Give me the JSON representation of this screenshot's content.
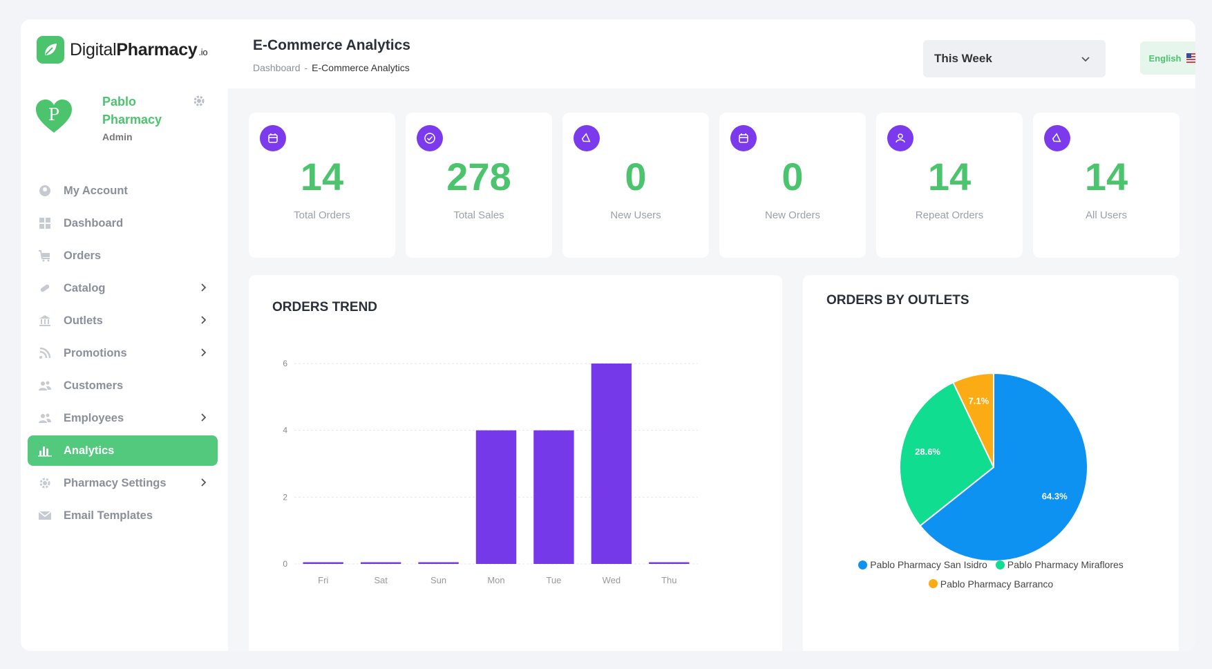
{
  "brand": {
    "name_light": "Digital",
    "name_bold": "Pharmacy",
    "suffix": ".io"
  },
  "profile": {
    "initial": "P",
    "name": "Pablo Pharmacy",
    "role": "Admin"
  },
  "nav": [
    {
      "label": "My Account",
      "icon": "user-circle-icon",
      "chevron": false,
      "active": false
    },
    {
      "label": "Dashboard",
      "icon": "dashboard-grid-icon",
      "chevron": false,
      "active": false
    },
    {
      "label": "Orders",
      "icon": "cart-icon",
      "chevron": false,
      "active": false
    },
    {
      "label": "Catalog",
      "icon": "pill-icon",
      "chevron": true,
      "active": false
    },
    {
      "label": "Outlets",
      "icon": "building-icon",
      "chevron": true,
      "active": false
    },
    {
      "label": "Promotions",
      "icon": "rss-icon",
      "chevron": true,
      "active": false
    },
    {
      "label": "Customers",
      "icon": "users-icon",
      "chevron": false,
      "active": false
    },
    {
      "label": "Employees",
      "icon": "users-icon",
      "chevron": true,
      "active": false
    },
    {
      "label": "Analytics",
      "icon": "bar-chart-icon",
      "chevron": false,
      "active": true
    },
    {
      "label": "Pharmacy Settings",
      "icon": "gear-icon",
      "chevron": true,
      "active": false
    },
    {
      "label": "Email Templates",
      "icon": "envelope-icon",
      "chevron": false,
      "active": false
    }
  ],
  "header": {
    "title": "E-Commerce Analytics",
    "breadcrumb": {
      "root": "Dashboard",
      "sep": "-",
      "current": "E-Commerce Analytics"
    },
    "range": {
      "selected": "This Week"
    },
    "language": {
      "label": "English",
      "flag": "us-flag-icon"
    }
  },
  "stats": [
    {
      "value": "14",
      "label": "Total Orders",
      "icon": "calendar-icon"
    },
    {
      "value": "278",
      "label": "Total Sales",
      "icon": "check-circle-icon"
    },
    {
      "value": "0",
      "label": "New Users",
      "icon": "megaphone-icon"
    },
    {
      "value": "0",
      "label": "New Orders",
      "icon": "calendar-icon"
    },
    {
      "value": "14",
      "label": "Repeat Orders",
      "icon": "user-icon"
    },
    {
      "value": "14",
      "label": "All Users",
      "icon": "megaphone-icon"
    }
  ],
  "colors": {
    "accent": "#4cc46e",
    "purple": "#7c3aed",
    "bar": "#7539ea",
    "blue": "#0e92f2",
    "green": "#10dd8f",
    "orange": "#fbac14"
  },
  "chart_data": [
    {
      "type": "bar",
      "title": "ORDERS TREND",
      "categories": [
        "Fri",
        "Sat",
        "Sun",
        "Mon",
        "Tue",
        "Wed",
        "Thu"
      ],
      "values": [
        0,
        0,
        0,
        4,
        4,
        6,
        0
      ],
      "ylim": [
        0,
        6
      ],
      "yticks": [
        "0",
        "2",
        "4",
        "6"
      ],
      "grid": true
    },
    {
      "type": "pie",
      "title": "ORDERS BY OUTLETS",
      "labels": [
        "Pablo Pharmacy San Isidro",
        "Pablo Pharmacy Miraflores",
        "Pablo Pharmacy Barranco"
      ],
      "values": [
        64.3,
        28.6,
        7.1
      ],
      "value_labels": [
        "64.3%",
        "28.6%",
        "7.1%"
      ],
      "legend": "bottom"
    }
  ]
}
